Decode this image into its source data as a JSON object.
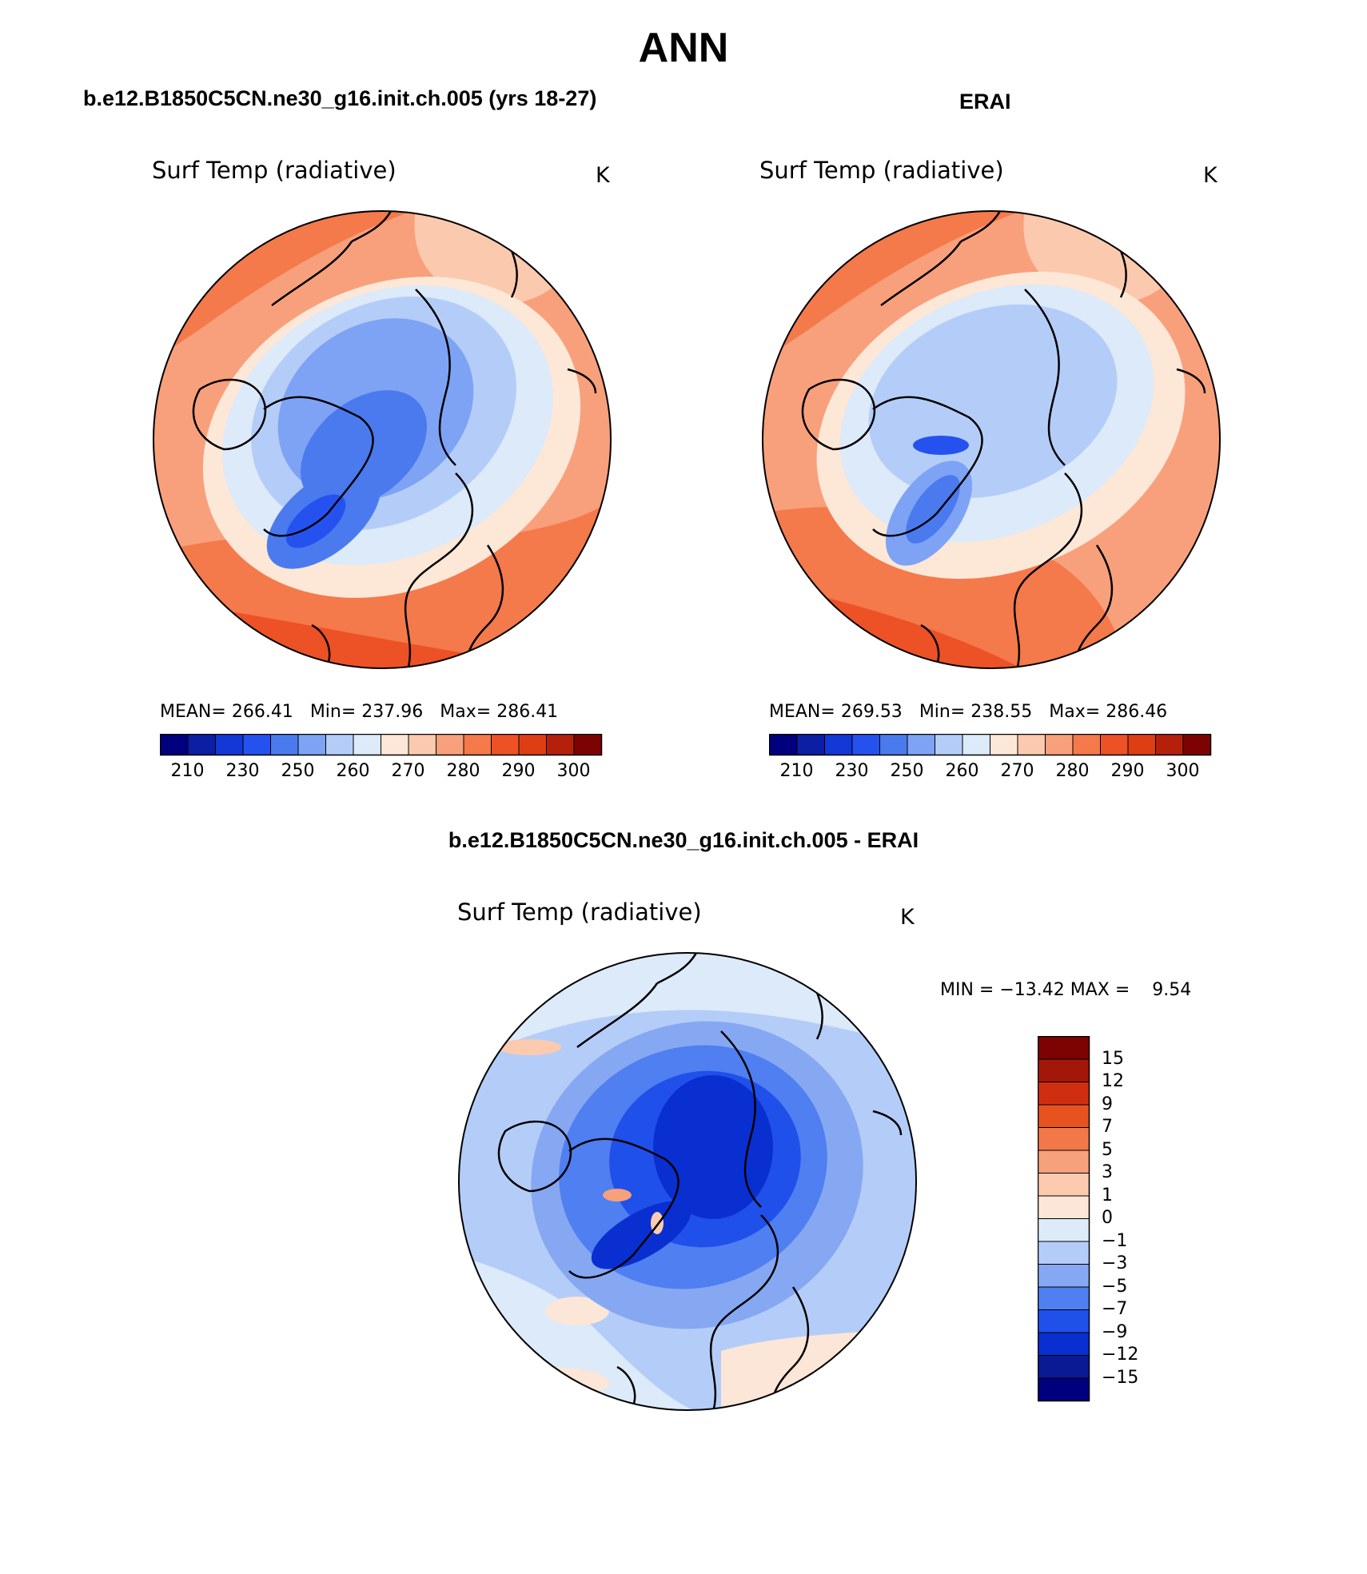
{
  "main_title": "ANN",
  "panels": [
    {
      "case_title": "b.e12.B1850C5CN.ne30_g16.init.ch.005 (yrs 18-27)",
      "variable": "Surf Temp (radiative)",
      "units": "K",
      "stats": {
        "mean_label": "MEAN=",
        "mean": "266.41",
        "min_label": "Min=",
        "min": "237.96",
        "max_label": "Max=",
        "max": "286.41"
      },
      "colorbar_labels": [
        "210",
        "230",
        "250",
        "260",
        "270",
        "280",
        "290",
        "300"
      ]
    },
    {
      "case_title": "ERAI",
      "variable": "Surf Temp (radiative)",
      "units": "K",
      "stats": {
        "mean_label": "MEAN=",
        "mean": "269.53",
        "min_label": "Min=",
        "min": "238.55",
        "max_label": "Max=",
        "max": "286.46"
      },
      "colorbar_labels": [
        "210",
        "230",
        "250",
        "260",
        "270",
        "280",
        "290",
        "300"
      ]
    },
    {
      "case_title": "b.e12.B1850C5CN.ne30_g16.init.ch.005 - ERAI",
      "variable": "Surf Temp (radiative)",
      "units": "K",
      "minmax": "MIN = −13.42 MAX =    9.54",
      "colorbar_labels": [
        "15",
        "12",
        "9",
        "7",
        "5",
        "3",
        "1",
        "0",
        "−1",
        "−3",
        "−5",
        "−7",
        "−9",
        "−12",
        "−15"
      ]
    }
  ],
  "colors": {
    "abs_scale": [
      "#00007f",
      "#0a1fa3",
      "#1239d6",
      "#2552ef",
      "#4a7aee",
      "#7ea3f4",
      "#b4cdf8",
      "#dceaf9",
      "#fde7d7",
      "#fbc9ae",
      "#f8a07c",
      "#f4794b",
      "#ed5126",
      "#dd3e14",
      "#b5200b",
      "#7d0303"
    ],
    "diff_scale_top_to_bottom": [
      "#7d0303",
      "#a3170a",
      "#cf2f10",
      "#e8521f",
      "#f27849",
      "#f6a17c",
      "#fbcaaf",
      "#fbe6d7",
      "#dceaf9",
      "#b4cdf8",
      "#86a8f2",
      "#4f7ff0",
      "#2050ea",
      "#0a2fd0",
      "#0a1a95",
      "#00007f"
    ]
  }
}
